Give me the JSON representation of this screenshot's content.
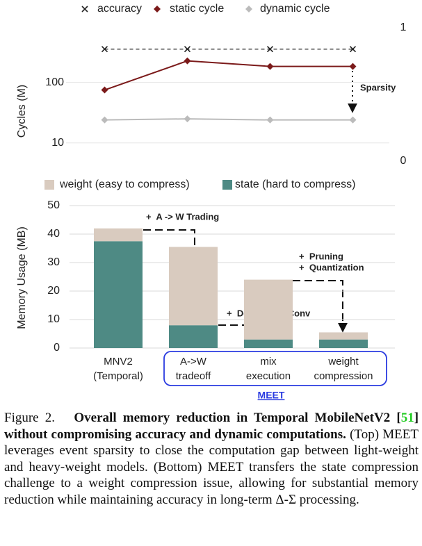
{
  "chart_data": [
    {
      "type": "line",
      "ylabel": "Cycles (M)",
      "log_scale": true,
      "ylim": [
        5,
        800
      ],
      "yticks": [
        10,
        100
      ],
      "y2lim": [
        0,
        1
      ],
      "y2ticks": [
        0,
        1
      ],
      "grid": true,
      "categories": [
        null,
        null,
        null,
        null
      ],
      "series": [
        {
          "name": "accuracy",
          "color": "#222222",
          "marker": "x",
          "line_style": "dashed",
          "axis": "y2",
          "values": [
            0.84,
            0.84,
            0.84,
            0.84
          ]
        },
        {
          "name": "static cycle",
          "color": "#7b1a1a",
          "marker": "diamond",
          "line_style": "solid",
          "values": [
            75,
            227,
            184,
            184
          ]
        },
        {
          "name": "dynamic cycle",
          "color": "#bbbbbb",
          "marker": "diamond",
          "line_style": "solid",
          "values": [
            24,
            25,
            24,
            24
          ]
        }
      ],
      "annotations": [
        "Sparsity"
      ]
    },
    {
      "type": "stacked_bar",
      "ylabel": "Memory Usage (MB)",
      "ylim": [
        0,
        50
      ],
      "yticks": [
        0,
        10,
        20,
        30,
        40,
        50
      ],
      "grid": true,
      "categories": [
        [
          "MNV2",
          "(Temporal)"
        ],
        [
          "A->W",
          "tradeoff"
        ],
        [
          "mix",
          "execution"
        ],
        [
          "weight",
          "compression"
        ]
      ],
      "series": [
        {
          "name": "weight (easy to compress)",
          "color": "#d9cbbf",
          "values": [
            4.5,
            27.5,
            21,
            2.5
          ]
        },
        {
          "name": "state (hard to compress)",
          "color": "#4e8a84",
          "values": [
            37.5,
            8,
            3,
            3
          ]
        }
      ],
      "annotations": [
        "+  A -> W Trading",
        "+  Depth-First Conv",
        "+  Pruning",
        "+  Quantization",
        "MEET"
      ]
    }
  ],
  "caption": {
    "label": "Figure 2.",
    "bold1": "Overall memory reduction in Temporal MobileNetV2 [",
    "ref": "51",
    "bold2": "] without compromising accuracy and dynamic computations.",
    "text": "(Top) MEET leverages event sparsity to close the computation gap between light-weight and heavy-weight models. (Bottom) MEET transfers the state compression challenge to a weight compression issue, allowing for substantial memory reduction while maintaining accuracy in long-term Δ-Σ processing."
  }
}
